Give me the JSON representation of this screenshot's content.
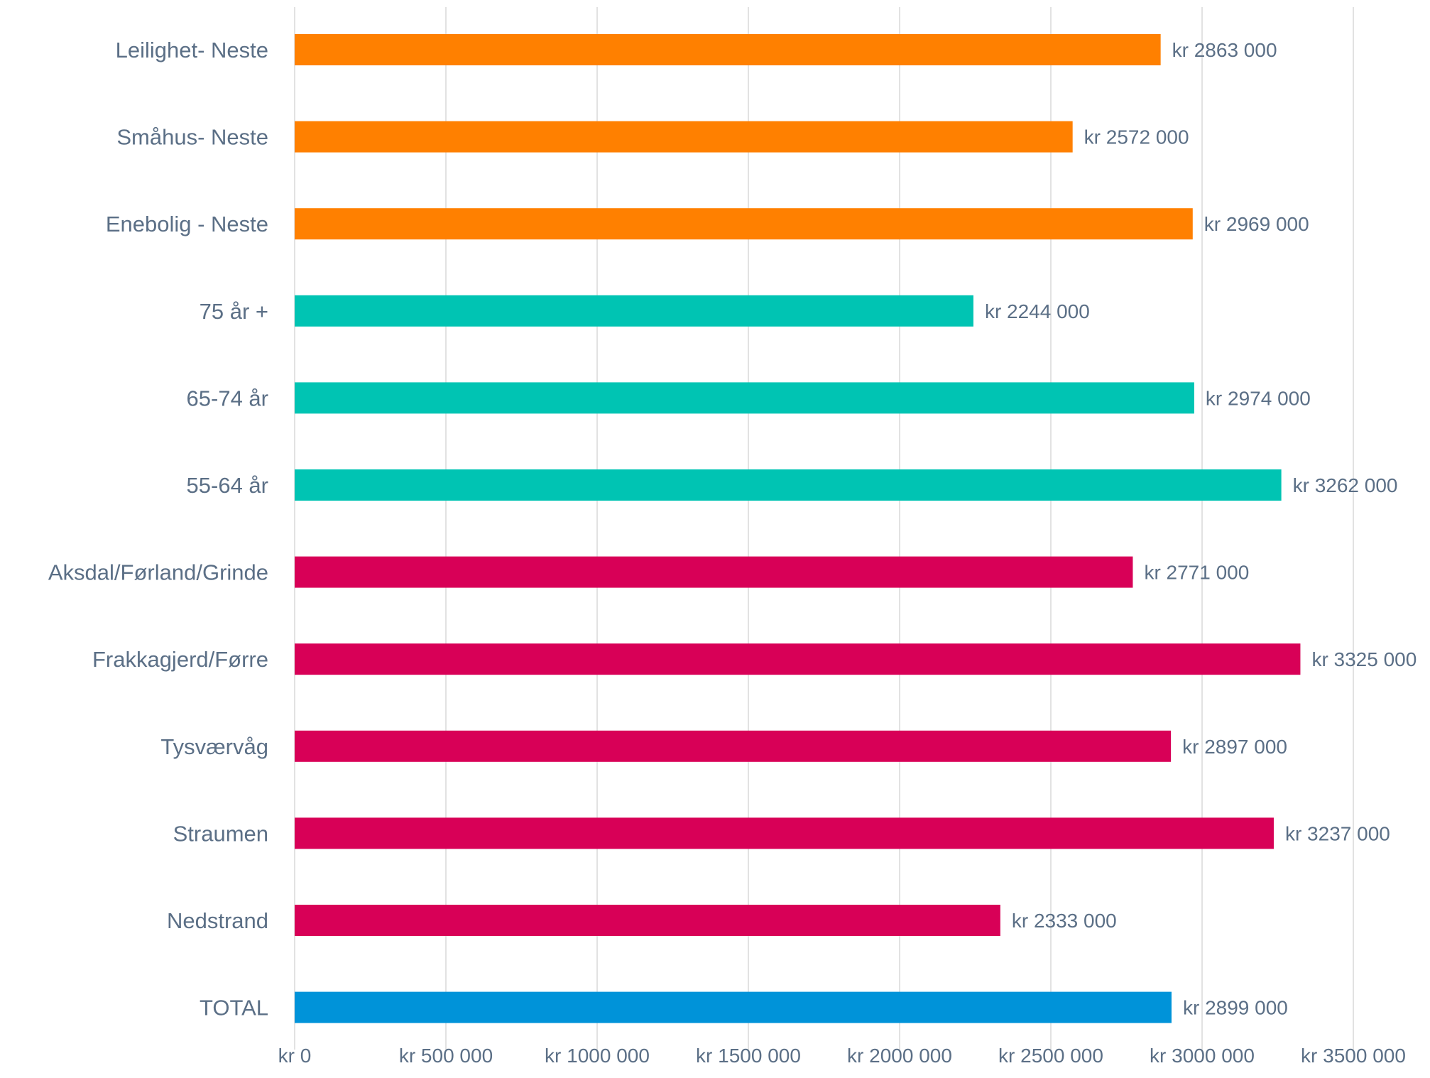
{
  "chart_data": {
    "type": "bar",
    "orientation": "horizontal",
    "title": "",
    "xlabel": "",
    "ylabel": "",
    "xlim": [
      0,
      3500000
    ],
    "grid": "vertical",
    "legend": "none",
    "categories": [
      "Leilighet- Neste",
      "Småhus- Neste",
      "Enebolig - Neste",
      "75 år +",
      "65-74 år",
      "55-64 år",
      "Aksdal/Førland/Grinde",
      "Frakkagjerd/Førre",
      "Tysværvåg",
      "Straumen",
      "Nedstrand",
      "TOTAL"
    ],
    "values": [
      2863000,
      2572000,
      2969000,
      2244000,
      2974000,
      3262000,
      2771000,
      3325000,
      2897000,
      3237000,
      2333000,
      2899000
    ],
    "data_labels": [
      "kr 2863 000",
      "kr 2572 000",
      "kr 2969 000",
      "kr 2244 000",
      "kr 2974 000",
      "kr 3262 000",
      "kr 2771 000",
      "kr 3325 000",
      "kr 2897 000",
      "kr 3237 000",
      "kr 2333 000",
      "kr 2899 000"
    ],
    "colors": [
      "#ff8000",
      "#ff8000",
      "#ff8000",
      "#00c4b3",
      "#00c4b3",
      "#00c4b3",
      "#d80057",
      "#d80057",
      "#d80057",
      "#d80057",
      "#d80057",
      "#0093d9"
    ],
    "ticks": [
      0,
      500000,
      1000000,
      1500000,
      2000000,
      2500000,
      3000000,
      3500000
    ],
    "tick_labels": [
      "kr  0",
      "kr 500 000",
      "kr 1000 000",
      "kr 1500 000",
      "kr 2000 000",
      "kr 2500 000",
      "kr 3000 000",
      "kr 3500 000"
    ]
  }
}
